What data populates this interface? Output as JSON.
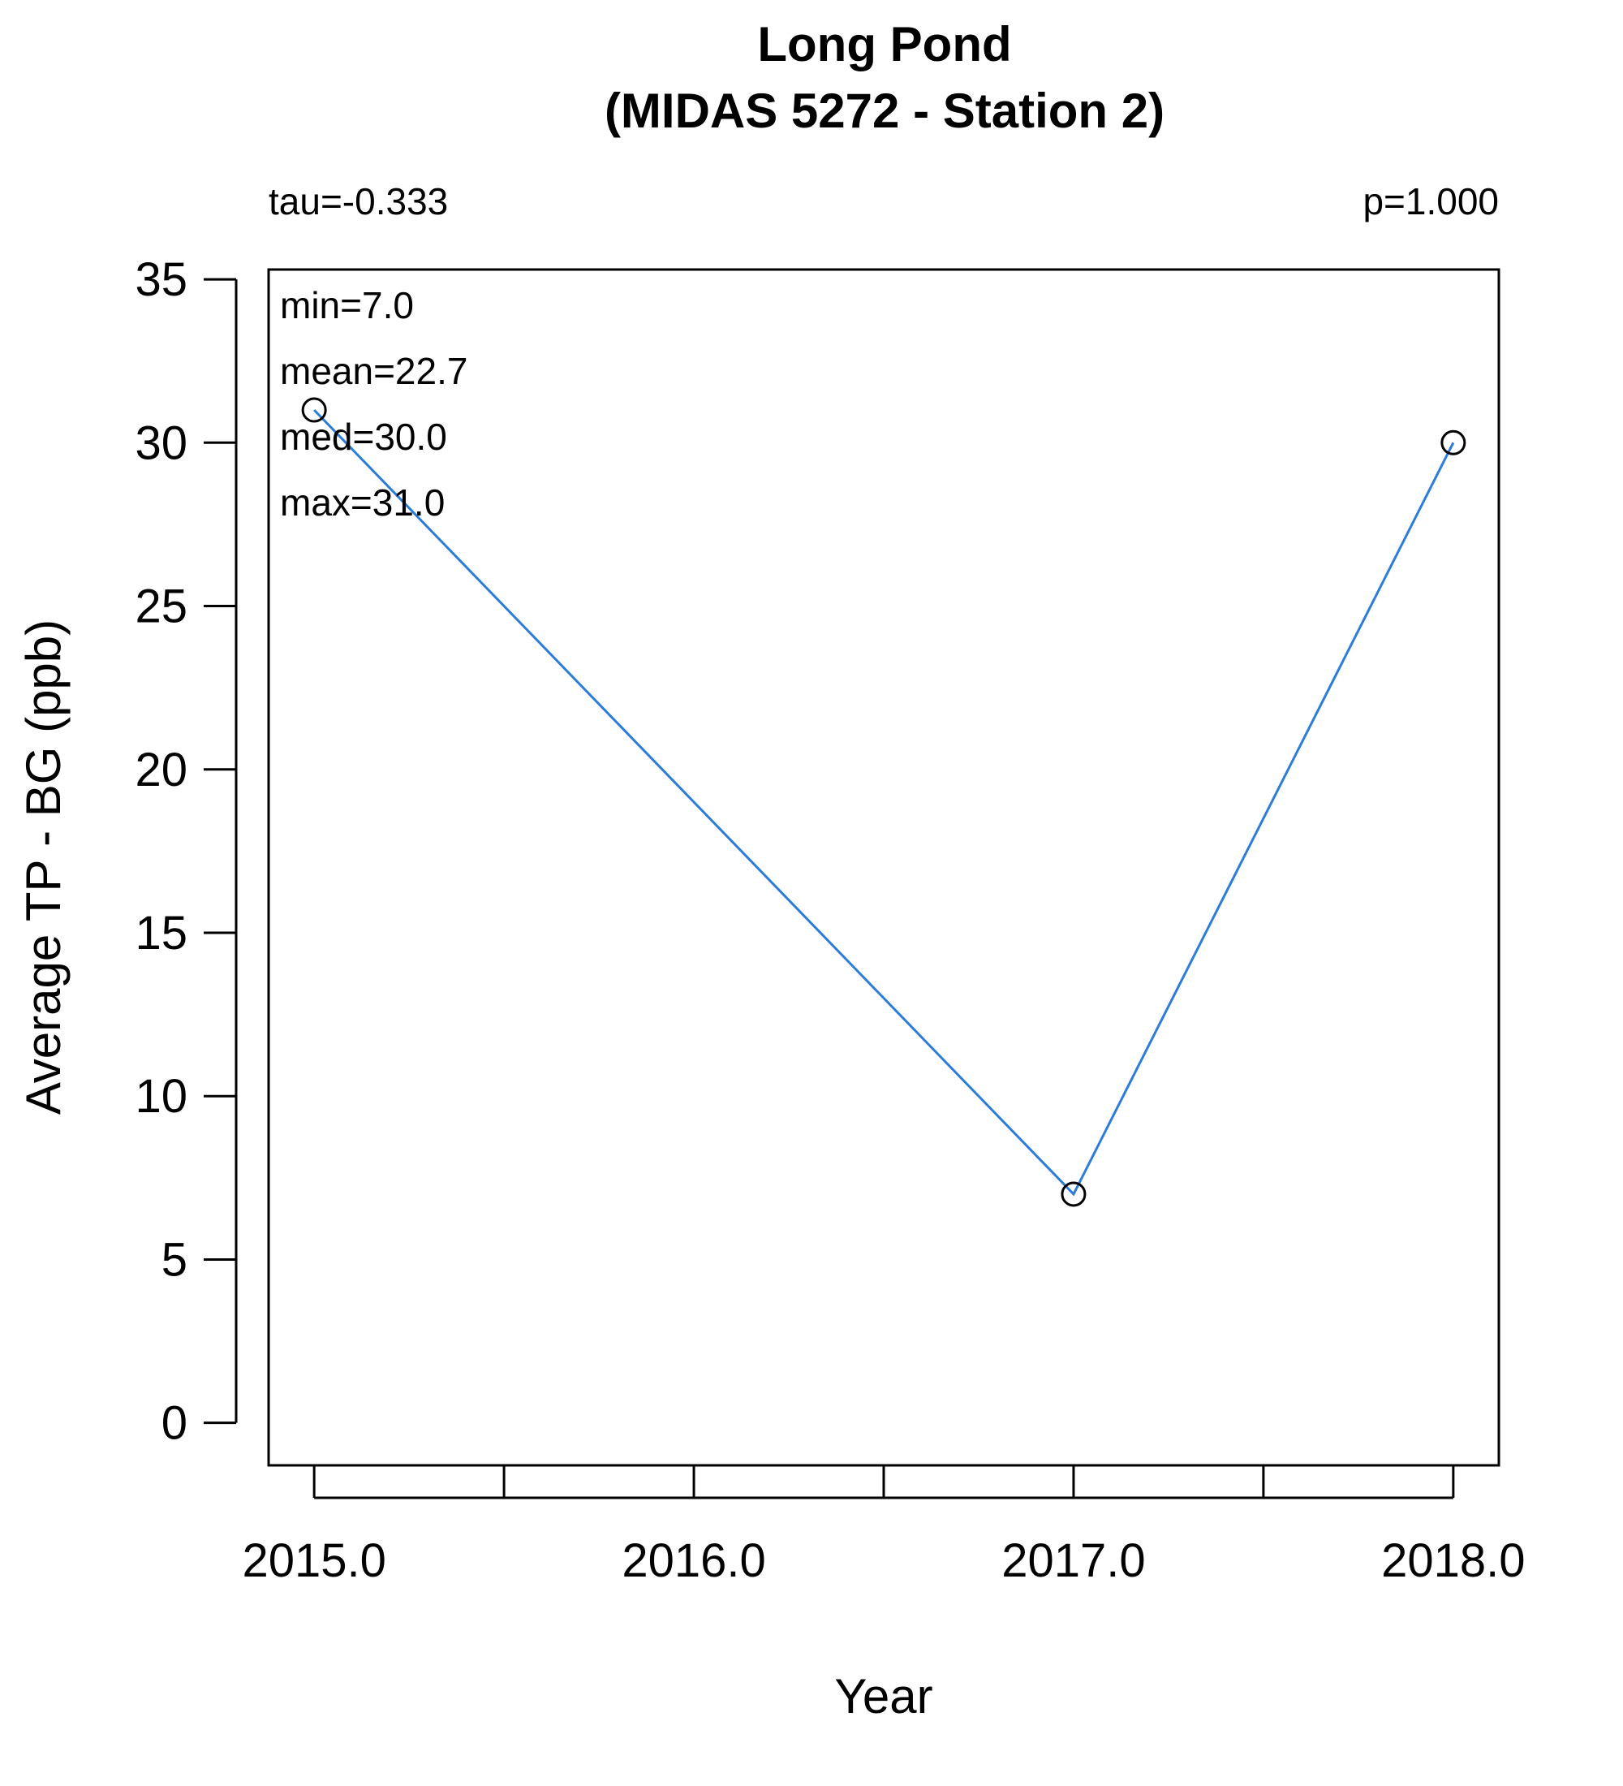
{
  "chart_data": {
    "type": "line",
    "title": [
      "Long Pond",
      "(MIDAS 5272 - Station 2)"
    ],
    "xlabel": "Year",
    "ylabel": "Average TP - BG (ppb)",
    "x": [
      2015,
      2017,
      2018
    ],
    "series": [
      {
        "values": [
          31,
          7,
          30
        ],
        "color": "#2b7cdb",
        "marker": "open-circle"
      }
    ],
    "xlim": [
      2014.88,
      2018.12
    ],
    "ylim": [
      -1.3,
      35.3
    ],
    "xticks": [
      2015.0,
      2015.5,
      2016.0,
      2016.5,
      2017.0,
      2017.5,
      2018.0
    ],
    "xtick_labels": [
      {
        "value": 2015.0,
        "label": "2015.0"
      },
      {
        "value": 2016.0,
        "label": "2016.0"
      },
      {
        "value": 2017.0,
        "label": "2017.0"
      },
      {
        "value": 2018.0,
        "label": "2018.0"
      }
    ],
    "yticks": [
      0,
      5,
      10,
      15,
      20,
      25,
      30,
      35
    ],
    "ytick_labels": [
      "0",
      "5",
      "10",
      "15",
      "20",
      "25",
      "30",
      "35"
    ],
    "annotations": {
      "tau": "tau=-0.333",
      "p": "p=1.000",
      "stats": [
        "min=7.0",
        "mean=22.7",
        "med=30.0",
        "max=31.0"
      ]
    },
    "grid": false
  }
}
